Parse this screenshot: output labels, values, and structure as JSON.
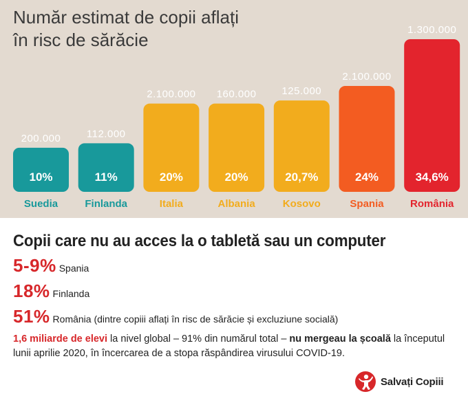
{
  "title": {
    "line1": "Număr estimat de copii aflați",
    "line2": "în risc de sărăcie"
  },
  "chart_data": {
    "type": "bar",
    "categories": [
      "Suedia",
      "Finlanda",
      "Italia",
      "Albania",
      "Kosovo",
      "Spania",
      "România"
    ],
    "values": [
      10,
      11,
      20,
      20,
      20.7,
      24,
      34.6
    ],
    "value_labels": [
      "10%",
      "11%",
      "20%",
      "20%",
      "20,7%",
      "24%",
      "34,6%"
    ],
    "counts": [
      "200.000",
      "112.000",
      "2.100.000",
      "160.000",
      "125.000",
      "2.100.000",
      "1.300.000"
    ],
    "colors": [
      "#18999b",
      "#18999b",
      "#f2ac1d",
      "#f2ac1d",
      "#f2ac1d",
      "#f35c21",
      "#e3242d"
    ],
    "label_colors": [
      "#18999b",
      "#18999b",
      "#f2ac1d",
      "#f2ac1d",
      "#f2ac1d",
      "#f35c21",
      "#e3242d"
    ],
    "ylim": [
      0,
      34.6
    ],
    "grid": false
  },
  "section2": {
    "title": "Copii care nu au acces la o tabletă sau un computer",
    "stats": [
      {
        "pct": "5-9%",
        "label": "Spania"
      },
      {
        "pct": "18%",
        "label": "Finlanda"
      },
      {
        "pct": "51%",
        "label": "România (dintre copiii aflați în risc de sărăcie și excluziune socială)"
      }
    ],
    "note": {
      "red": "1,6 miliarde de elevi",
      "text1": " la nivel global – 91% din numărul total – ",
      "bold": "nu mergeau la școală",
      "text2": " la începutul lunii aprilie 2020, în încercarea de a stopa răspândirea virusului COVID-19."
    }
  },
  "logo": {
    "text": "Salvați Copiii",
    "icon": "save-the-children-figure-icon",
    "color": "#d7272a"
  }
}
